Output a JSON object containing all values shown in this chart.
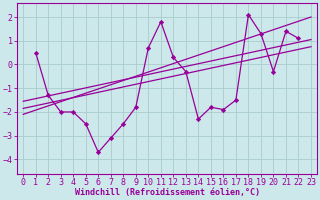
{
  "background_color": "#cce8ea",
  "grid_color": "#aacccc",
  "line_color": "#990099",
  "marker_color": "#990099",
  "xlabel": "Windchill (Refroidissement éolien,°C)",
  "xlabel_fontsize": 6.0,
  "tick_fontsize": 6.0,
  "xlim": [
    -0.5,
    23.5
  ],
  "ylim": [
    -4.6,
    2.6
  ],
  "yticks": [
    -4,
    -3,
    -2,
    -1,
    0,
    1,
    2
  ],
  "xticks": [
    0,
    1,
    2,
    3,
    4,
    5,
    6,
    7,
    8,
    9,
    10,
    11,
    12,
    13,
    14,
    15,
    16,
    17,
    18,
    19,
    20,
    21,
    22,
    23
  ],
  "scatter_x": [
    1,
    2,
    3,
    4,
    5,
    6,
    7,
    8,
    9,
    10,
    11,
    12,
    13,
    14,
    15,
    16,
    17,
    18,
    19,
    20,
    21,
    22
  ],
  "scatter_y": [
    0.5,
    -1.3,
    -2.0,
    -2.0,
    -2.5,
    -3.7,
    -3.1,
    -2.5,
    -1.8,
    0.7,
    1.8,
    0.3,
    -0.3,
    -2.3,
    -1.8,
    -1.9,
    -1.5,
    2.1,
    1.3,
    -0.3,
    1.4,
    1.1
  ],
  "line1_x": [
    0,
    23
  ],
  "line1_y": [
    -1.55,
    1.05
  ],
  "line2_x": [
    0,
    23
  ],
  "line2_y": [
    -1.85,
    0.75
  ],
  "line3_x": [
    0,
    23
  ],
  "line3_y": [
    -2.1,
    2.0
  ]
}
